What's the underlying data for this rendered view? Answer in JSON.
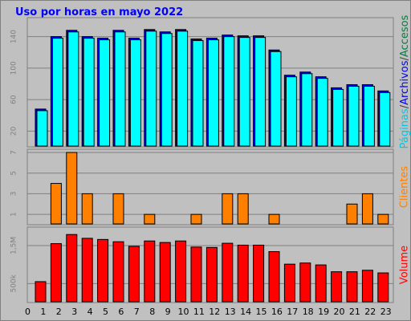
{
  "title": "Uso por horas en mayo 2022",
  "colors": {
    "background": "#c0c0c0",
    "title": "#0000ff",
    "paginas": "#00ffff",
    "archivos": "#0000ff",
    "accesos": "#008040",
    "clientes": "#ff8000",
    "volume": "#ff0000",
    "grid": "#808080"
  },
  "right_labels": {
    "top": [
      {
        "text": "Páginas",
        "color": "#00c8e6"
      },
      {
        "text": "/",
        "color": "#444444"
      },
      {
        "text": "Archivos",
        "color": "#0000ff"
      },
      {
        "text": "/",
        "color": "#444444"
      },
      {
        "text": "Accesos",
        "color": "#008040"
      }
    ],
    "middle": "Clientes",
    "bottom": "Volume"
  },
  "chart_data": [
    {
      "type": "bar",
      "name": "accesos-panel",
      "categories": [
        "0",
        "1",
        "2",
        "3",
        "4",
        "5",
        "6",
        "7",
        "8",
        "9",
        "10",
        "11",
        "12",
        "13",
        "14",
        "15",
        "16",
        "17",
        "18",
        "19",
        "20",
        "21",
        "22",
        "23"
      ],
      "ylim": [
        0,
        160
      ],
      "yticks": [
        "20",
        "60",
        "100",
        "140"
      ],
      "ytick_values": [
        20,
        60,
        100,
        140
      ],
      "series": [
        {
          "name": "Accesos",
          "values": [
            0,
            0,
            0,
            0,
            0,
            0,
            0,
            0,
            0,
            0,
            0,
            0,
            0,
            0,
            0,
            0,
            0,
            0,
            0,
            0,
            0,
            0,
            0,
            0
          ]
        },
        {
          "name": "Archivos",
          "values": [
            48,
            140,
            148,
            140,
            138,
            148,
            138,
            149,
            146,
            149,
            137,
            138,
            142,
            141,
            141,
            123,
            91,
            95,
            89,
            75,
            79,
            79,
            71,
            0
          ]
        },
        {
          "name": "Páginas",
          "values": [
            48,
            140,
            148,
            140,
            138,
            148,
            138,
            149,
            146,
            149,
            137,
            138,
            142,
            141,
            141,
            123,
            91,
            95,
            89,
            75,
            79,
            79,
            71,
            0
          ]
        }
      ]
    },
    {
      "type": "bar",
      "name": "clientes-panel",
      "categories": [
        "0",
        "1",
        "2",
        "3",
        "4",
        "5",
        "6",
        "7",
        "8",
        "9",
        "10",
        "11",
        "12",
        "13",
        "14",
        "15",
        "16",
        "17",
        "18",
        "19",
        "20",
        "21",
        "22",
        "23"
      ],
      "ylim": [
        0,
        7
      ],
      "yticks": [
        "1",
        "3",
        "5",
        "7"
      ],
      "ytick_values": [
        1,
        3,
        5,
        7
      ],
      "series": [
        {
          "name": "Clientes",
          "values": [
            0,
            4,
            7,
            3,
            0,
            3,
            0,
            1,
            0,
            0,
            1,
            0,
            3,
            3,
            0,
            1,
            0,
            0,
            0,
            0,
            2,
            3,
            1,
            0
          ]
        }
      ]
    },
    {
      "type": "bar",
      "name": "volume-panel",
      "categories": [
        "0",
        "1",
        "2",
        "3",
        "4",
        "5",
        "6",
        "7",
        "8",
        "9",
        "10",
        "11",
        "12",
        "13",
        "14",
        "15",
        "16",
        "17",
        "18",
        "19",
        "20",
        "21",
        "22",
        "23"
      ],
      "ylim": [
        0,
        1900000
      ],
      "yticks": [
        "500k",
        "1,5M"
      ],
      "ytick_values": [
        500000,
        1500000
      ],
      "series": [
        {
          "name": "Volume",
          "values": [
            550000,
            1550000,
            1790000,
            1690000,
            1660000,
            1600000,
            1480000,
            1620000,
            1580000,
            1620000,
            1460000,
            1450000,
            1560000,
            1510000,
            1510000,
            1340000,
            1010000,
            1040000,
            990000,
            810000,
            810000,
            850000,
            780000,
            0
          ]
        }
      ]
    }
  ]
}
